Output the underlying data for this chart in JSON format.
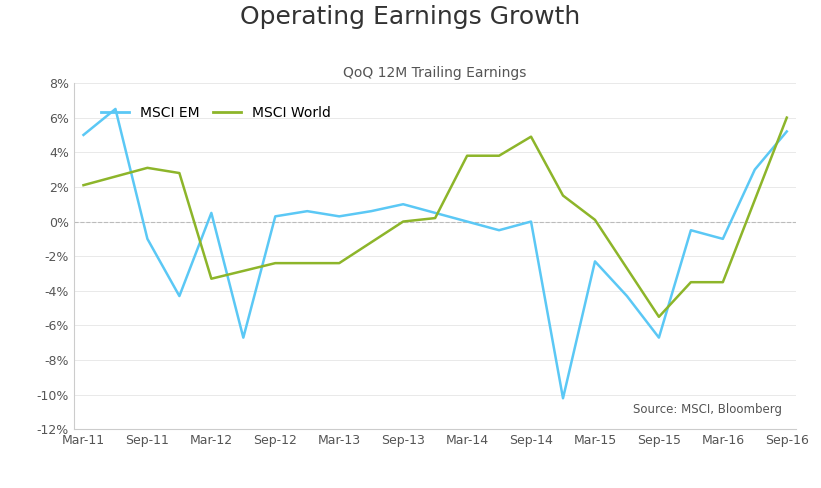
{
  "title": "Operating Earnings Growth",
  "subtitle": "QoQ 12M Trailing Earnings",
  "source_text": "Source: MSCI, Bloomberg",
  "x_labels": [
    "Mar-11",
    "Sep-11",
    "Mar-12",
    "Sep-12",
    "Mar-13",
    "Sep-13",
    "Mar-14",
    "Sep-14",
    "Mar-15",
    "Sep-15",
    "Mar-16",
    "Sep-16"
  ],
  "em_x": [
    0,
    1,
    2,
    3,
    4,
    5,
    6,
    7,
    8,
    9,
    10,
    11,
    12,
    13,
    14,
    15,
    16,
    17,
    18,
    19,
    20,
    21,
    22
  ],
  "em_y": [
    5.0,
    6.5,
    -1.0,
    -4.3,
    0.5,
    -6.7,
    0.3,
    0.6,
    0.3,
    0.6,
    1.0,
    0.5,
    0.0,
    -0.5,
    0.0,
    -10.2,
    -2.3,
    -4.3,
    -6.7,
    -0.5,
    -1.0,
    3.0,
    5.2
  ],
  "world_x": [
    0,
    2,
    3,
    4,
    6,
    8,
    10,
    11,
    12,
    13,
    14,
    15,
    16,
    18,
    19,
    20,
    22
  ],
  "world_y": [
    2.1,
    3.1,
    2.8,
    -3.3,
    -2.4,
    -2.4,
    0.0,
    0.2,
    3.8,
    3.8,
    4.9,
    1.5,
    0.1,
    -5.5,
    -3.5,
    -3.5,
    6.0
  ],
  "em_color": "#5BC8F5",
  "world_color": "#8DB52A",
  "background_color": "#FFFFFF",
  "title_fontsize": 18,
  "subtitle_fontsize": 10,
  "axis_fontsize": 9,
  "legend_fontsize": 10,
  "ylim": [
    -12,
    8
  ],
  "yticks": [
    -12,
    -10,
    -8,
    -6,
    -4,
    -2,
    0,
    2,
    4,
    6,
    8
  ],
  "tick_positions": [
    0,
    2,
    4,
    6,
    8,
    10,
    12,
    14,
    16,
    18,
    20,
    22
  ],
  "xlim": [
    -0.3,
    22.3
  ]
}
